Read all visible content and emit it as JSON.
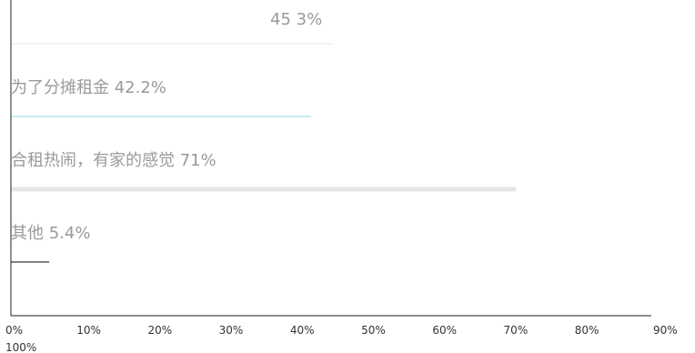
{
  "chart_data": {
    "type": "bar",
    "orientation": "horizontal",
    "title": "",
    "xlabel": "",
    "ylabel": "",
    "xlim": [
      0,
      90
    ],
    "grid": false,
    "legend": "none",
    "ticks": [
      "0%",
      "10%",
      "20%",
      "30%",
      "40%",
      "50%",
      "60%",
      "70%",
      "80%",
      "90%"
    ],
    "extra_tick": "100%",
    "categories": [
      {
        "label": "45 3%",
        "value": 45.3,
        "color": "#e8e8e8"
      },
      {
        "label": "为了分摊租金 42.2%",
        "value": 42.2,
        "color": "#9fe3e8"
      },
      {
        "label": "合租热闹，有家的感觉  71%",
        "value": 71,
        "color": "#e6e6e6"
      },
      {
        "label": "其他  5.4%",
        "value": 5.4,
        "color": "#333333"
      }
    ]
  }
}
